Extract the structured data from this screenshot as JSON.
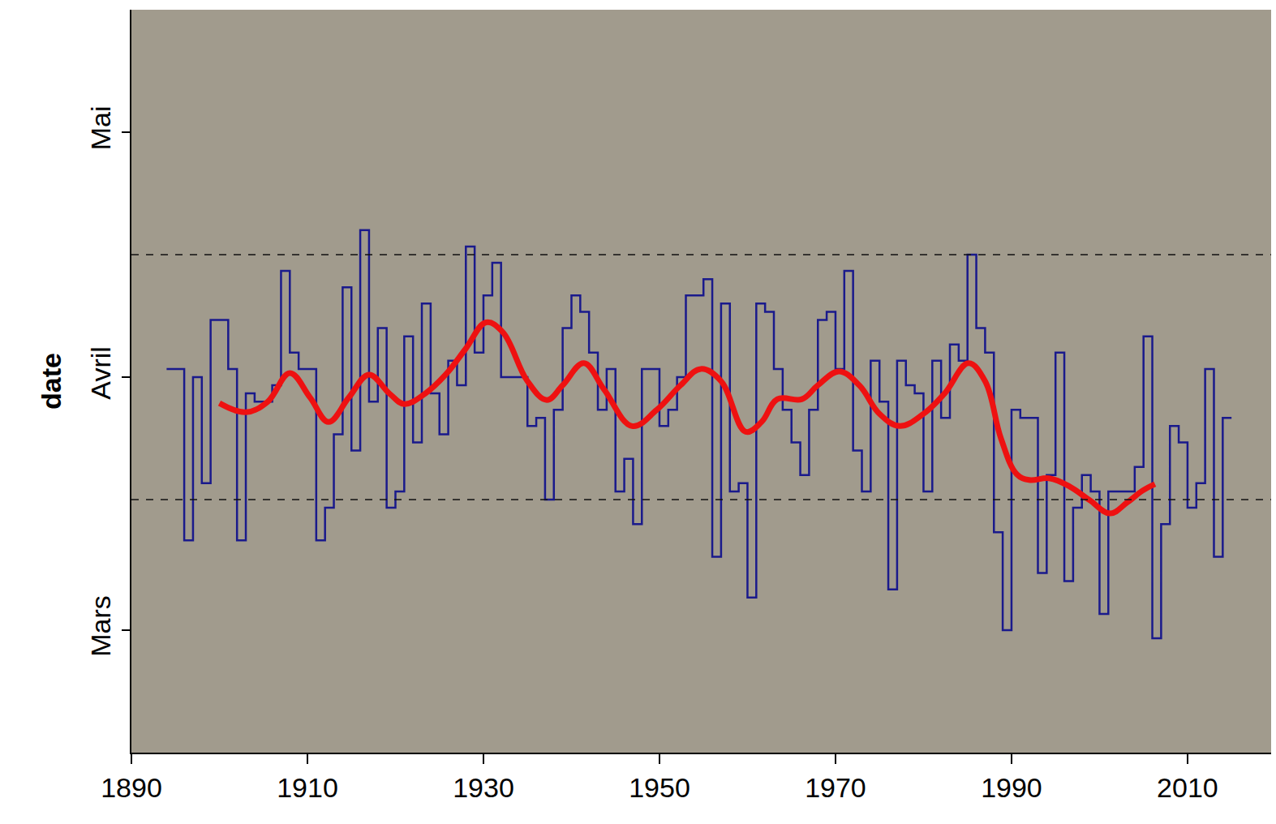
{
  "chart_data": {
    "type": "line",
    "y_label": "date",
    "xlim": [
      1890,
      2019.5
    ],
    "xticks": [
      1890,
      1910,
      1930,
      1950,
      1970,
      1990,
      2010
    ],
    "ylim": [
      60,
      151
    ],
    "yticks": [
      {
        "value": 75,
        "label": "Mars"
      },
      {
        "value": 106,
        "label": "Avril"
      },
      {
        "value": 136,
        "label": "Mai"
      }
    ],
    "hlines": [
      91,
      121
    ],
    "grid": false,
    "series": [
      {
        "line_style": "step",
        "color": "#1a1a8c",
        "x": [
          1894,
          1895,
          1896,
          1897,
          1898,
          1899,
          1900,
          1901,
          1902,
          1903,
          1904,
          1905,
          1906,
          1907,
          1908,
          1909,
          1910,
          1911,
          1912,
          1913,
          1914,
          1915,
          1916,
          1917,
          1918,
          1919,
          1920,
          1921,
          1922,
          1923,
          1924,
          1925,
          1926,
          1927,
          1928,
          1929,
          1930,
          1931,
          1932,
          1933,
          1934,
          1935,
          1936,
          1937,
          1938,
          1939,
          1940,
          1941,
          1942,
          1943,
          1944,
          1945,
          1946,
          1947,
          1948,
          1949,
          1950,
          1951,
          1952,
          1953,
          1954,
          1955,
          1956,
          1957,
          1958,
          1959,
          1960,
          1961,
          1962,
          1963,
          1964,
          1965,
          1966,
          1967,
          1968,
          1969,
          1970,
          1971,
          1972,
          1973,
          1974,
          1975,
          1976,
          1977,
          1978,
          1979,
          1980,
          1981,
          1982,
          1983,
          1984,
          1985,
          1986,
          1987,
          1988,
          1989,
          1990,
          1991,
          1992,
          1993,
          1994,
          1995,
          1996,
          1997,
          1998,
          1999,
          2000,
          2001,
          2002,
          2003,
          2004,
          2005,
          2006,
          2007,
          2008,
          2009,
          2010,
          2011,
          2012,
          2013,
          2014
        ],
        "values": [
          107,
          107,
          86,
          106,
          93,
          113,
          113,
          107,
          86,
          104,
          103,
          103,
          105,
          119,
          109,
          107,
          107,
          86,
          90,
          99,
          117,
          97,
          124,
          103,
          112,
          90,
          92,
          111,
          98,
          115,
          104,
          99,
          108,
          105,
          122,
          109,
          116,
          120,
          106,
          106,
          106,
          100,
          101,
          91,
          102,
          112,
          116,
          114,
          109,
          102,
          107,
          92,
          96,
          88,
          107,
          107,
          100,
          102,
          106,
          116,
          116,
          118,
          84,
          115,
          92,
          93,
          79,
          115,
          114,
          107,
          102,
          98,
          94,
          102,
          113,
          114,
          107,
          119,
          97,
          92,
          108,
          103,
          80,
          108,
          105,
          104,
          92,
          108,
          101,
          110,
          108,
          121,
          112,
          109,
          87,
          75,
          102,
          101,
          101,
          82,
          94,
          109,
          81,
          90,
          94,
          92,
          77,
          92,
          92,
          92,
          95,
          111,
          74,
          88,
          100,
          98,
          90,
          93,
          107,
          84,
          101
        ]
      },
      {
        "line_style": "smooth",
        "color": "#ee1111",
        "x": [
          1900,
          1903,
          1905.5,
          1908,
          1910.3,
          1912.4,
          1914.7,
          1917,
          1919.3,
          1921,
          1923.4,
          1925.7,
          1928,
          1930.3,
          1932.2,
          1935,
          1937.2,
          1939,
          1941.4,
          1943.7,
          1946.9,
          1949.7,
          1952.4,
          1954.7,
          1957,
          1959.8,
          1961.6,
          1963.4,
          1966.2,
          1968,
          1970.4,
          1972.7,
          1975,
          1977.3,
          1980,
          1982.4,
          1985.1,
          1987,
          1988.8,
          1990.6,
          1992,
          1994.3,
          1996.6,
          1998.9,
          2001.2,
          2003.1,
          2004.9,
          2006.3
        ],
        "values": [
          102.8,
          101.7,
          103,
          106.5,
          103.5,
          100.5,
          103.5,
          106.3,
          104,
          102.7,
          104,
          106.3,
          109.5,
          112.7,
          111.5,
          105.5,
          103.2,
          105,
          107.7,
          104.5,
          100,
          102,
          105,
          107,
          105.5,
          99.3,
          100.5,
          103.3,
          103.3,
          105,
          106.7,
          105,
          101.5,
          100,
          101.5,
          104,
          107.7,
          105.5,
          98.5,
          94.1,
          93.4,
          93.6,
          92.6,
          90.9,
          89.3,
          90.6,
          92.1,
          92.9
        ]
      }
    ]
  }
}
